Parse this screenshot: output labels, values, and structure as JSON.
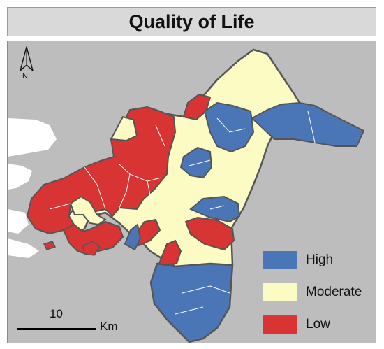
{
  "title": "Quality of Life",
  "north_arrow": {
    "label": "N"
  },
  "legend": {
    "items": [
      {
        "label": "High",
        "color": "#4a76b8"
      },
      {
        "label": "Moderate",
        "color": "#fdfbc4"
      },
      {
        "label": "Low",
        "color": "#d93434"
      }
    ]
  },
  "scale_bar": {
    "value": "10",
    "unit": "Km"
  },
  "colors": {
    "background": "#bdbdbd",
    "land_outside": "#ffffff",
    "boundary": "#555555",
    "internal_boundary": "#ffffff"
  }
}
